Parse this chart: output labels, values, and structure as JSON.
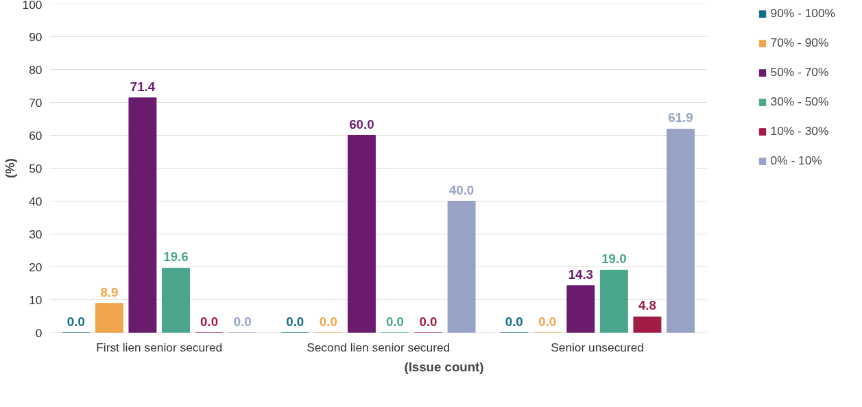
{
  "chart_data": {
    "type": "bar",
    "categories": [
      "First lien senior secured",
      "Second lien senior secured",
      "Senior unsecured"
    ],
    "xlabel": "(Issue count)",
    "ylabel": "(%)",
    "ylim": [
      0,
      100
    ],
    "yticks": [
      0,
      10,
      20,
      30,
      40,
      50,
      60,
      70,
      80,
      90,
      100
    ],
    "grid": "y",
    "legend": "right",
    "series": [
      {
        "name": "90% - 100%",
        "color": "#0f6e87",
        "values": [
          0.0,
          0.0,
          0.0
        ],
        "value_labels": [
          "0.0",
          "0.0",
          "0.0"
        ]
      },
      {
        "name": "70% - 90%",
        "color": "#f0a64a",
        "values": [
          8.9,
          0.0,
          0.0
        ],
        "value_labels": [
          "8.9",
          "0.0",
          "0.0"
        ]
      },
      {
        "name": "50% - 70%",
        "color": "#6a1b6e",
        "values": [
          71.4,
          60.0,
          14.3
        ],
        "value_labels": [
          "71.4",
          "60.0",
          "14.3"
        ]
      },
      {
        "name": "30% - 50%",
        "color": "#49a58c",
        "values": [
          19.6,
          0.0,
          19.0
        ],
        "value_labels": [
          "19.6",
          "0.0",
          "19.0"
        ]
      },
      {
        "name": "10% - 30%",
        "color": "#a31c45",
        "values": [
          0.0,
          0.0,
          4.8
        ],
        "value_labels": [
          "0.0",
          "0.0",
          "4.8"
        ]
      },
      {
        "name": "0% - 10%",
        "color": "#98a2c6",
        "values": [
          0.0,
          40.0,
          61.9
        ],
        "value_labels": [
          "0.0",
          "40.0",
          "61.9"
        ]
      }
    ]
  }
}
